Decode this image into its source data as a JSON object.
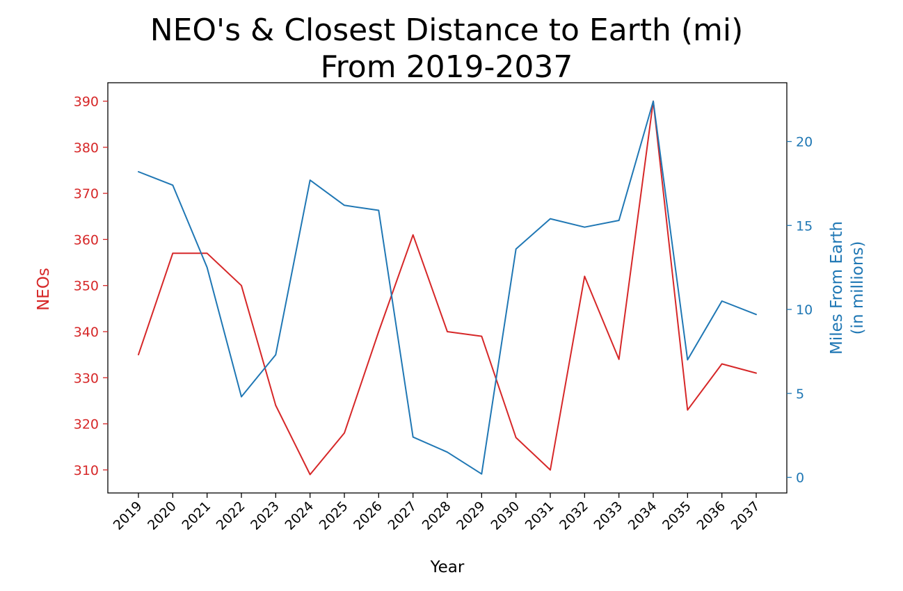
{
  "chart_data": {
    "type": "line",
    "title": "NEO's & Closest Distance to Earth (mi)",
    "subtitle": "From 2019-2037",
    "xlabel": "Year",
    "ylabel_left": "NEOs",
    "ylabel_right_line1": "Miles From Earth",
    "ylabel_right_line2": "(in millions)",
    "left_color": "#d62728",
    "right_color": "#1f77b4",
    "grid": false,
    "legend": "none",
    "categories": [
      "2019",
      "2020",
      "2021",
      "2022",
      "2023",
      "2024",
      "2025",
      "2026",
      "2027",
      "2028",
      "2029",
      "2030",
      "2031",
      "2032",
      "2033",
      "2034",
      "2035",
      "2036",
      "2037"
    ],
    "left_ylim": [
      305,
      394
    ],
    "left_ticks": [
      310,
      320,
      330,
      340,
      350,
      360,
      370,
      380,
      390
    ],
    "right_ylim": [
      -0.93,
      23.5
    ],
    "right_ticks": [
      0,
      5,
      10,
      15,
      20
    ],
    "series": [
      {
        "axis": "left",
        "values": [
          335,
          357,
          357,
          350,
          324,
          309,
          318,
          340,
          361,
          340,
          339,
          317,
          310,
          352,
          334,
          390,
          323,
          333,
          331
        ]
      },
      {
        "axis": "right",
        "values": [
          18.2,
          17.4,
          12.5,
          4.8,
          7.3,
          17.7,
          16.2,
          15.9,
          2.4,
          1.5,
          0.2,
          13.6,
          15.4,
          14.9,
          15.3,
          22.4,
          7.0,
          10.5,
          9.7
        ]
      }
    ]
  }
}
